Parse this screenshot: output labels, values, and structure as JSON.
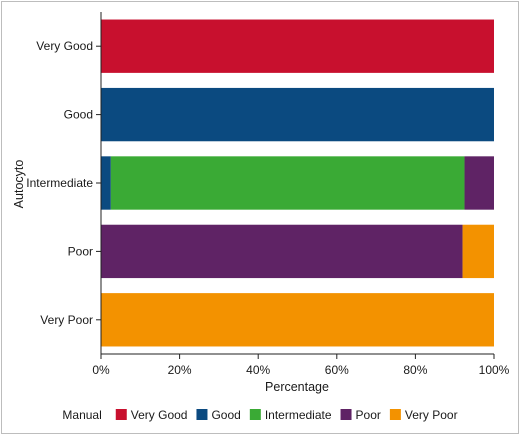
{
  "chart_data": {
    "type": "bar",
    "orientation": "horizontal",
    "stacked": true,
    "categories": [
      "Very Good",
      "Good",
      "Intermediate",
      "Poor",
      "Very Poor"
    ],
    "xlabel": "Percentage",
    "ylabel": "Autocyto",
    "xlim": [
      0,
      100
    ],
    "x_ticks": [
      "0%",
      "20%",
      "40%",
      "60%",
      "80%",
      "100%"
    ],
    "x_tick_values": [
      0,
      20,
      40,
      60,
      80,
      100
    ],
    "legend_title": "Manual",
    "legend_position": "bottom",
    "series": [
      {
        "name": "Very Good",
        "color": "#c8102e",
        "values": [
          100,
          0,
          0,
          0,
          0
        ]
      },
      {
        "name": "Good",
        "color": "#0b4a80",
        "values": [
          0,
          100,
          2.5,
          0,
          0
        ]
      },
      {
        "name": "Intermediate",
        "color": "#3aaa35",
        "values": [
          0,
          0,
          90,
          0,
          0
        ]
      },
      {
        "name": "Poor",
        "color": "#5f2365",
        "values": [
          0,
          0,
          7.5,
          92,
          0
        ]
      },
      {
        "name": "Very Poor",
        "color": "#f39200",
        "values": [
          0,
          0,
          0,
          8,
          100
        ]
      }
    ]
  }
}
